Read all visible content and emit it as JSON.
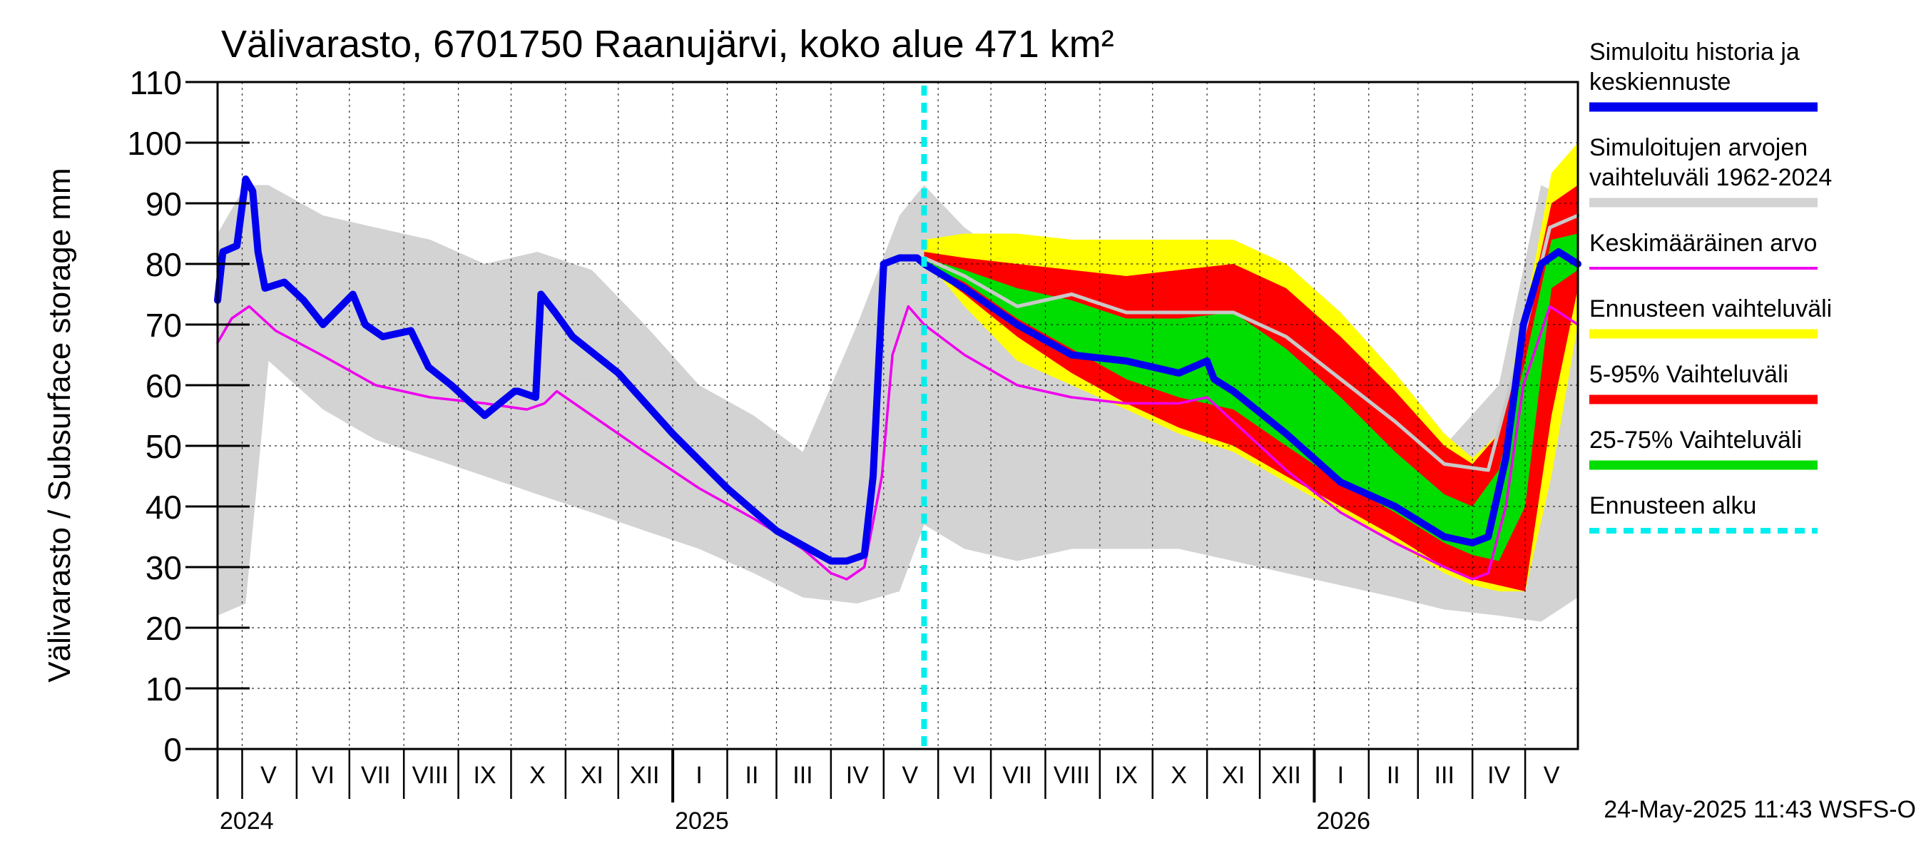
{
  "chart_data": {
    "type": "area",
    "title": "Välivarasto, 6701750 Raanujärvi, koko alue 471 km²",
    "ylabel": "Välivarasto / Subsurface storage  mm",
    "ylim": [
      0,
      110
    ],
    "y_ticks": [
      0,
      10,
      20,
      30,
      40,
      50,
      60,
      70,
      80,
      90,
      100,
      110
    ],
    "xlim": [
      "2024-04-17",
      "2026-05-31"
    ],
    "x_month_labels": [
      {
        "label": "V",
        "date": "2024-05-16"
      },
      {
        "label": "VI",
        "date": "2024-06-16"
      },
      {
        "label": "VII",
        "date": "2024-07-16"
      },
      {
        "label": "VIII",
        "date": "2024-08-16"
      },
      {
        "label": "IX",
        "date": "2024-09-16"
      },
      {
        "label": "X",
        "date": "2024-10-16"
      },
      {
        "label": "XI",
        "date": "2024-11-16"
      },
      {
        "label": "XII",
        "date": "2024-12-16"
      },
      {
        "label": "I",
        "date": "2025-01-16"
      },
      {
        "label": "II",
        "date": "2025-02-15"
      },
      {
        "label": "III",
        "date": "2025-03-16"
      },
      {
        "label": "IV",
        "date": "2025-04-16"
      },
      {
        "label": "V",
        "date": "2025-05-16"
      },
      {
        "label": "VI",
        "date": "2025-06-16"
      },
      {
        "label": "VII",
        "date": "2025-07-16"
      },
      {
        "label": "VIII",
        "date": "2025-08-16"
      },
      {
        "label": "IX",
        "date": "2025-09-16"
      },
      {
        "label": "X",
        "date": "2025-10-16"
      },
      {
        "label": "XI",
        "date": "2025-11-16"
      },
      {
        "label": "XII",
        "date": "2025-12-16"
      },
      {
        "label": "I",
        "date": "2026-01-16"
      },
      {
        "label": "II",
        "date": "2026-02-15"
      },
      {
        "label": "III",
        "date": "2026-03-16"
      },
      {
        "label": "IV",
        "date": "2026-04-16"
      },
      {
        "label": "V",
        "date": "2026-05-16"
      }
    ],
    "x_month_boundaries": [
      "2024-05-01",
      "2024-06-01",
      "2024-07-01",
      "2024-08-01",
      "2024-09-01",
      "2024-10-01",
      "2024-11-01",
      "2024-12-01",
      "2025-01-01",
      "2025-02-01",
      "2025-03-01",
      "2025-04-01",
      "2025-05-01",
      "2025-06-01",
      "2025-07-01",
      "2025-08-01",
      "2025-09-01",
      "2025-10-01",
      "2025-11-01",
      "2025-12-01",
      "2026-01-01",
      "2026-02-01",
      "2026-03-01",
      "2026-04-01",
      "2026-05-01"
    ],
    "x_year_labels": [
      {
        "label": "2024",
        "date": "2024-04-17"
      },
      {
        "label": "2025",
        "date": "2025-01-01"
      },
      {
        "label": "2026",
        "date": "2026-01-01"
      }
    ],
    "forecast_start": "2025-05-24",
    "grid": true,
    "legend_position": "right",
    "timestamp": "24-May-2025 11:43 WSFS-O",
    "colors": {
      "simulated": "#0000ee",
      "hist_range": "#d3d3d3",
      "mean": "#ee00ee",
      "forecast_range": "#ffff00",
      "p5_95": "#ff0000",
      "p25_75": "#00dd00",
      "forecast_start": "#00eeee",
      "forecast_median": "#c8c8c8"
    },
    "legend": [
      {
        "label": "Simuloitu historia ja keskiennuste",
        "lines": [
          "Simuloitu historia ja",
          "keskiennuste"
        ],
        "color": "#0000ee",
        "style": "thick"
      },
      {
        "label": "Simuloitujen arvojen vaihteluväli 1962-2024",
        "lines": [
          "Simuloitujen arvojen",
          "vaihteluväli 1962-2024"
        ],
        "color": "#d3d3d3",
        "style": "thick"
      },
      {
        "label": "Keskimääräinen arvo",
        "lines": [
          "Keskimääräinen arvo"
        ],
        "color": "#ee00ee",
        "style": "thin"
      },
      {
        "label": "Ennusteen vaihteluväli",
        "lines": [
          "Ennusteen vaihteluväli"
        ],
        "color": "#ffff00",
        "style": "thick"
      },
      {
        "label": "5-95% Vaihteluväli",
        "lines": [
          "5-95% Vaihteluväli"
        ],
        "color": "#ff0000",
        "style": "thick"
      },
      {
        "label": "25-75% Vaihteluväli",
        "lines": [
          "25-75% Vaihteluväli"
        ],
        "color": "#00dd00",
        "style": "thick"
      },
      {
        "label": "Ennusteen alku",
        "lines": [
          "Ennusteen alku"
        ],
        "color": "#00eeee",
        "style": "dashed"
      }
    ],
    "series": [
      {
        "name": "Simuloitu historia ja keskiennuste",
        "x": [
          "2024-04-17",
          "2024-04-20",
          "2024-04-28",
          "2024-05-03",
          "2024-05-07",
          "2024-05-10",
          "2024-05-14",
          "2024-05-25",
          "2024-06-05",
          "2024-06-16",
          "2024-07-03",
          "2024-07-10",
          "2024-07-20",
          "2024-08-05",
          "2024-08-15",
          "2024-08-28",
          "2024-09-16",
          "2024-10-03",
          "2024-10-05",
          "2024-10-15",
          "2024-10-18",
          "2024-10-26",
          "2024-11-05",
          "2024-12-01",
          "2025-01-01",
          "2025-02-01",
          "2025-03-01",
          "2025-04-01",
          "2025-04-10",
          "2025-04-20",
          "2025-04-25",
          "2025-05-01",
          "2025-05-10",
          "2025-05-20",
          "2025-05-24",
          "2025-06-16",
          "2025-07-16",
          "2025-08-16",
          "2025-09-16",
          "2025-10-16",
          "2025-11-01",
          "2025-11-05",
          "2025-11-16",
          "2025-12-16",
          "2026-01-16",
          "2026-02-16",
          "2026-03-16",
          "2026-04-01",
          "2026-04-10",
          "2026-04-20",
          "2026-04-30",
          "2026-05-10",
          "2026-05-20",
          "2026-05-31"
        ],
        "y": [
          74,
          82,
          83,
          94,
          92,
          82,
          76,
          77,
          74,
          70,
          75,
          70,
          68,
          69,
          63,
          60,
          55,
          59,
          59,
          58,
          75,
          72,
          68,
          62,
          52,
          43,
          36,
          31,
          31,
          32,
          45,
          80,
          81,
          81,
          80,
          76,
          70,
          65,
          64,
          62,
          64,
          61,
          59,
          52,
          44,
          40,
          35,
          34,
          35,
          48,
          70,
          80,
          82,
          80
        ]
      },
      {
        "name": "Keskimääräinen arvo",
        "x": [
          "2024-04-17",
          "2024-04-25",
          "2024-05-05",
          "2024-05-20",
          "2024-06-15",
          "2024-07-16",
          "2024-08-16",
          "2024-09-16",
          "2024-10-10",
          "2024-10-20",
          "2024-10-27",
          "2024-11-16",
          "2024-12-16",
          "2025-01-16",
          "2025-02-16",
          "2025-03-16",
          "2025-04-01",
          "2025-04-10",
          "2025-04-20",
          "2025-04-30",
          "2025-05-06",
          "2025-05-15",
          "2025-05-24",
          "2025-06-16",
          "2025-07-16",
          "2025-08-16",
          "2025-09-16",
          "2025-10-16",
          "2025-11-01",
          "2025-11-16",
          "2025-12-16",
          "2026-01-16",
          "2026-02-16",
          "2026-03-16",
          "2026-04-01",
          "2026-04-10",
          "2026-04-20",
          "2026-04-30",
          "2026-05-15",
          "2026-05-31"
        ],
        "y": [
          67,
          71,
          73,
          69,
          65,
          60,
          58,
          57,
          56,
          57,
          59,
          55,
          49,
          43,
          38,
          33,
          29,
          28,
          30,
          45,
          65,
          73,
          70,
          65,
          60,
          58,
          57,
          57,
          58,
          54,
          46,
          39,
          34,
          30,
          28,
          29,
          40,
          60,
          73,
          70
        ]
      },
      {
        "name": "Simuloitujen arvojen vaihteluväli 1962-2024",
        "x": [
          "2024-04-17",
          "2024-05-03",
          "2024-05-16",
          "2024-06-16",
          "2024-07-16",
          "2024-08-16",
          "2024-09-16",
          "2024-10-16",
          "2024-11-16",
          "2024-12-16",
          "2025-01-16",
          "2025-02-16",
          "2025-03-16",
          "2025-04-16",
          "2025-05-10",
          "2025-05-24",
          "2025-06-16",
          "2025-07-16",
          "2025-08-16",
          "2025-09-16",
          "2025-10-16",
          "2025-11-16",
          "2025-12-16",
          "2026-01-16",
          "2026-02-16",
          "2026-03-16",
          "2026-04-16",
          "2026-05-10",
          "2026-05-31"
        ],
        "upper": [
          85,
          93,
          93,
          88,
          86,
          84,
          80,
          82,
          79,
          70,
          60,
          55,
          49,
          70,
          88,
          93,
          86,
          80,
          80,
          78,
          78,
          74,
          68,
          62,
          55,
          50,
          60,
          93,
          90
        ],
        "lower": [
          22,
          24,
          64,
          56,
          51,
          48,
          45,
          42,
          39,
          36,
          33,
          29,
          25,
          24,
          26,
          37,
          33,
          31,
          33,
          33,
          33,
          31,
          29,
          27,
          25,
          23,
          22,
          21,
          25
        ]
      },
      {
        "name": "Ennusteen vaihteluväli",
        "x": [
          "2025-05-24",
          "2025-06-16",
          "2025-07-16",
          "2025-08-16",
          "2025-09-16",
          "2025-10-16",
          "2025-11-16",
          "2025-12-16",
          "2026-01-16",
          "2026-02-16",
          "2026-03-16",
          "2026-04-01",
          "2026-04-16",
          "2026-05-01",
          "2026-05-16",
          "2026-05-31"
        ],
        "upper": [
          84,
          85,
          85,
          84,
          84,
          84,
          84,
          80,
          72,
          62,
          52,
          48,
          52,
          72,
          95,
          100
        ],
        "lower": [
          81,
          73,
          64,
          60,
          56,
          52,
          49,
          44,
          39,
          34,
          29,
          27,
          26,
          26,
          45,
          70
        ]
      },
      {
        "name": "5-95% Vaihteluväli",
        "x": [
          "2025-05-24",
          "2025-06-16",
          "2025-07-16",
          "2025-08-16",
          "2025-09-16",
          "2025-10-16",
          "2025-11-16",
          "2025-12-16",
          "2026-01-16",
          "2026-02-16",
          "2026-03-16",
          "2026-04-01",
          "2026-04-16",
          "2026-05-01",
          "2026-05-16",
          "2026-05-31"
        ],
        "upper": [
          82,
          81,
          80,
          79,
          78,
          79,
          80,
          76,
          68,
          59,
          50,
          47,
          52,
          70,
          90,
          93
        ],
        "lower": [
          80,
          75,
          68,
          62,
          57,
          53,
          50,
          45,
          40,
          35,
          30,
          28,
          27,
          26,
          55,
          76
        ]
      },
      {
        "name": "25-75% Vaihteluväli",
        "x": [
          "2025-05-24",
          "2025-06-16",
          "2025-07-16",
          "2025-08-16",
          "2025-09-16",
          "2025-10-16",
          "2025-11-16",
          "2025-12-16",
          "2026-01-16",
          "2026-02-16",
          "2026-03-16",
          "2026-04-01",
          "2026-04-16",
          "2026-05-01",
          "2026-05-16",
          "2026-05-31"
        ],
        "upper": [
          81,
          79,
          76,
          74,
          71,
          71,
          72,
          66,
          58,
          49,
          42,
          40,
          46,
          64,
          84,
          85
        ],
        "lower": [
          80,
          77,
          71,
          66,
          61,
          58,
          56,
          50,
          44,
          39,
          34,
          32,
          31,
          40,
          76,
          79
        ]
      },
      {
        "name": "Ennusteen mediaani",
        "x": [
          "2025-05-24",
          "2025-06-16",
          "2025-07-16",
          "2025-08-16",
          "2025-09-16",
          "2025-10-16",
          "2025-11-16",
          "2025-12-16",
          "2026-01-16",
          "2026-02-16",
          "2026-03-16",
          "2026-04-10",
          "2026-04-30",
          "2026-05-15",
          "2026-05-31"
        ],
        "y": [
          81,
          78,
          73,
          75,
          72,
          72,
          72,
          68,
          61,
          54,
          47,
          46,
          68,
          86,
          88
        ]
      }
    ]
  }
}
